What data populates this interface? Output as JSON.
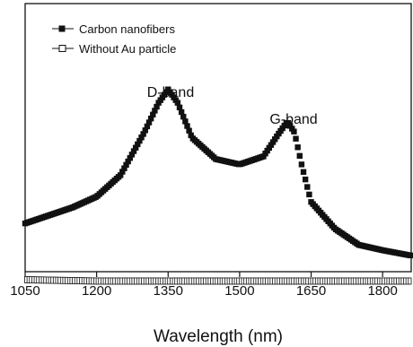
{
  "chart_data": {
    "type": "scatter",
    "xlabel": "Wavelength (nm)",
    "ylabel": "",
    "xlim": [
      1050,
      1860
    ],
    "ylim": [
      0,
      1.0
    ],
    "xticks": [
      1050,
      1200,
      1350,
      1500,
      1650,
      1800
    ],
    "tick_labels": [
      "1050",
      "1200",
      "1350",
      "1500",
      "1650",
      "1800"
    ],
    "grid": false,
    "legend_position": "top-left",
    "legend": [
      {
        "label": "Carbon nanofibers",
        "marker": "filled-square",
        "color": "#111111"
      },
      {
        "label": "Without Au particle",
        "marker": "open-square",
        "color": "#111111"
      }
    ],
    "annotations": [
      {
        "text": "D-band",
        "x": 1350
      },
      {
        "text": "G-band",
        "x": 1600
      }
    ],
    "series": [
      {
        "name": "Carbon nanofibers",
        "marker": "filled-square",
        "x": [
          1050,
          1100,
          1150,
          1200,
          1250,
          1300,
          1330,
          1350,
          1370,
          1400,
          1450,
          1500,
          1550,
          1580,
          1600,
          1615,
          1630,
          1650,
          1700,
          1750,
          1800,
          1860
        ],
        "y": [
          0.18,
          0.21,
          0.24,
          0.28,
          0.36,
          0.52,
          0.63,
          0.68,
          0.63,
          0.5,
          0.42,
          0.4,
          0.43,
          0.51,
          0.56,
          0.52,
          0.4,
          0.26,
          0.16,
          0.1,
          0.08,
          0.06
        ]
      },
      {
        "name": "Without Au particle",
        "marker": "open-square",
        "x": [
          1050,
          1200,
          1350,
          1500,
          1650,
          1800,
          1860
        ],
        "y": [
          -0.03,
          -0.035,
          -0.035,
          -0.035,
          -0.035,
          -0.035,
          -0.035
        ]
      }
    ]
  }
}
